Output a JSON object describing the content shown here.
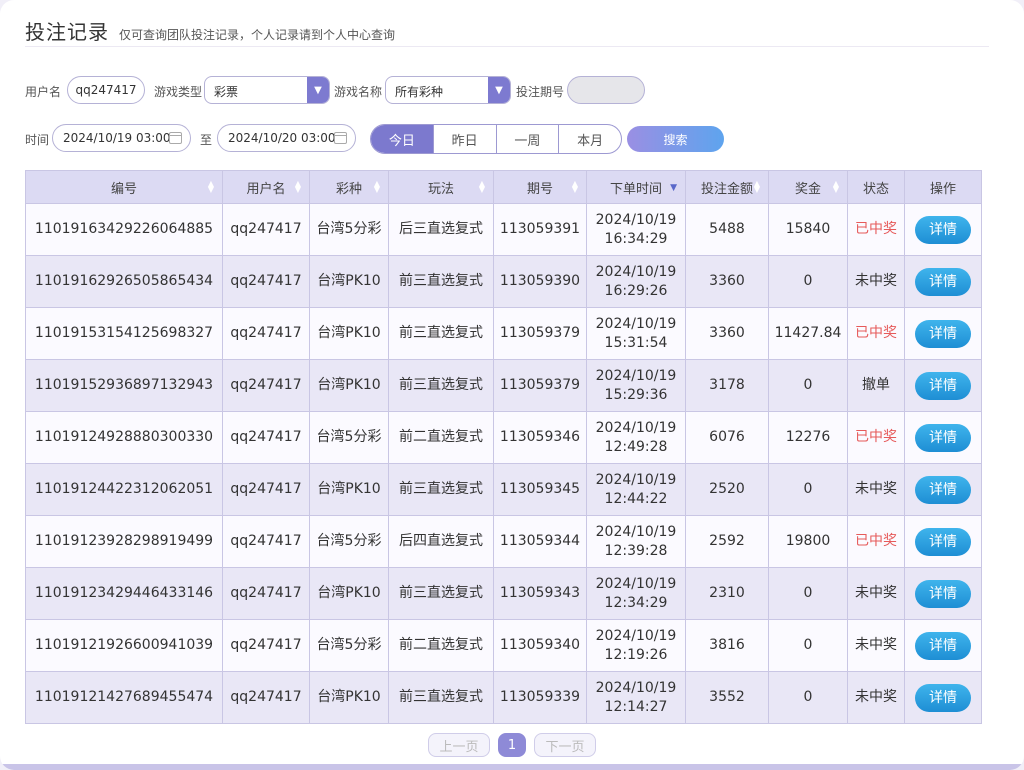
{
  "header": {
    "title": "投注记录",
    "subtitle": "仅可查询团队投注记录，个人记录请到个人中心查询"
  },
  "filters": {
    "username_label": "用户名",
    "username_value": "qq247417",
    "game_type_label": "游戏类型",
    "game_type_value": "彩票",
    "game_name_label": "游戏名称",
    "game_name_value": "所有彩种",
    "period_label": "投注期号",
    "period_value": "",
    "time_label": "时间",
    "start_time": "2024/10/19 03:00",
    "to_label": "至",
    "end_time": "2024/10/20 03:00",
    "quick_ranges": [
      "今日",
      "昨日",
      "一周",
      "本月"
    ],
    "active_range": "今日",
    "search_label": "搜索"
  },
  "table": {
    "columns": [
      "编号",
      "用户名",
      "彩种",
      "玩法",
      "期号",
      "下单时间",
      "投注金额",
      "奖金",
      "状态",
      "操作"
    ],
    "rows": [
      {
        "id": "11019163429226064885",
        "user": "qq247417",
        "lottery": "台湾5分彩",
        "play": "后三直选复式",
        "period": "113059391",
        "date": "2024/10/19",
        "time": "16:34:29",
        "amount": "5488",
        "prize": "15840",
        "status": "已中奖",
        "action": "详情"
      },
      {
        "id": "11019162926505865434",
        "user": "qq247417",
        "lottery": "台湾PK10",
        "play": "前三直选复式",
        "period": "113059390",
        "date": "2024/10/19",
        "time": "16:29:26",
        "amount": "3360",
        "prize": "0",
        "status": "未中奖",
        "action": "详情"
      },
      {
        "id": "11019153154125698327",
        "user": "qq247417",
        "lottery": "台湾PK10",
        "play": "前三直选复式",
        "period": "113059379",
        "date": "2024/10/19",
        "time": "15:31:54",
        "amount": "3360",
        "prize": "11427.84",
        "status": "已中奖",
        "action": "详情"
      },
      {
        "id": "11019152936897132943",
        "user": "qq247417",
        "lottery": "台湾PK10",
        "play": "前三直选复式",
        "period": "113059379",
        "date": "2024/10/19",
        "time": "15:29:36",
        "amount": "3178",
        "prize": "0",
        "status": "撤单",
        "action": "详情"
      },
      {
        "id": "11019124928880300330",
        "user": "qq247417",
        "lottery": "台湾5分彩",
        "play": "前二直选复式",
        "period": "113059346",
        "date": "2024/10/19",
        "time": "12:49:28",
        "amount": "6076",
        "prize": "12276",
        "status": "已中奖",
        "action": "详情"
      },
      {
        "id": "11019124422312062051",
        "user": "qq247417",
        "lottery": "台湾PK10",
        "play": "前三直选复式",
        "period": "113059345",
        "date": "2024/10/19",
        "time": "12:44:22",
        "amount": "2520",
        "prize": "0",
        "status": "未中奖",
        "action": "详情"
      },
      {
        "id": "11019123928298919499",
        "user": "qq247417",
        "lottery": "台湾5分彩",
        "play": "后四直选复式",
        "period": "113059344",
        "date": "2024/10/19",
        "time": "12:39:28",
        "amount": "2592",
        "prize": "19800",
        "status": "已中奖",
        "action": "详情"
      },
      {
        "id": "11019123429446433146",
        "user": "qq247417",
        "lottery": "台湾PK10",
        "play": "前三直选复式",
        "period": "113059343",
        "date": "2024/10/19",
        "time": "12:34:29",
        "amount": "2310",
        "prize": "0",
        "status": "未中奖",
        "action": "详情"
      },
      {
        "id": "11019121926600941039",
        "user": "qq247417",
        "lottery": "台湾5分彩",
        "play": "前二直选复式",
        "period": "113059340",
        "date": "2024/10/19",
        "time": "12:19:26",
        "amount": "3816",
        "prize": "0",
        "status": "未中奖",
        "action": "详情"
      },
      {
        "id": "11019121427689455474",
        "user": "qq247417",
        "lottery": "台湾PK10",
        "play": "前三直选复式",
        "period": "113059339",
        "date": "2024/10/19",
        "time": "12:14:27",
        "amount": "3552",
        "prize": "0",
        "status": "未中奖",
        "action": "详情"
      }
    ]
  },
  "pagination": {
    "prev_label": "上一页",
    "current_page": "1",
    "next_label": "下一页"
  },
  "colors": {
    "accent": "#7c79ce",
    "header_bg": "#dcdaf3",
    "won": "#e65a5a",
    "detail_button": "#1e8ed4"
  },
  "icons": {
    "dropdown": "triangle-down-icon",
    "calendar": "calendar-icon",
    "sort": "sort-icon"
  }
}
